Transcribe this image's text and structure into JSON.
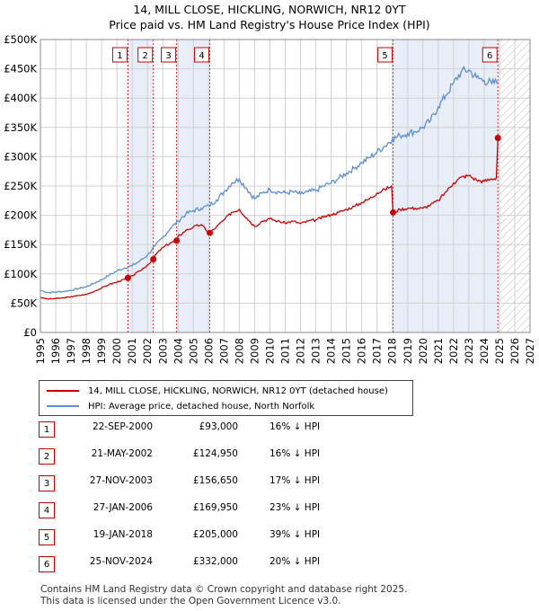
{
  "title_line1": "14, MILL CLOSE, HICKLING, NORWICH, NR12 0YT",
  "title_line2": "Price paid vs. HM Land Registry's House Price Index (HPI)",
  "legend": {
    "property_label": "14, MILL CLOSE, HICKLING, NORWICH, NR12 0YT (detached house)",
    "hpi_label": "HPI: Average price, detached house, North Norfolk"
  },
  "colors": {
    "property": "#cc0000",
    "hpi": "#5b8fd0",
    "shade": "#e8eef8",
    "grid": "#d0d0d0",
    "marker_border": "#cc0000",
    "vline": "#cc0000"
  },
  "transactions": [
    {
      "num": "1",
      "date": "22-SEP-2000",
      "price": "£93,000",
      "hpi": "16% ↓ HPI"
    },
    {
      "num": "2",
      "date": "21-MAY-2002",
      "price": "£124,950",
      "hpi": "16% ↓ HPI"
    },
    {
      "num": "3",
      "date": "27-NOV-2003",
      "price": "£156,650",
      "hpi": "17% ↓ HPI"
    },
    {
      "num": "4",
      "date": "27-JAN-2006",
      "price": "£169,950",
      "hpi": "23% ↓ HPI"
    },
    {
      "num": "5",
      "date": "19-JAN-2018",
      "price": "£205,000",
      "hpi": "39% ↓ HPI"
    },
    {
      "num": "6",
      "date": "25-NOV-2024",
      "price": "£332,000",
      "hpi": "20% ↓ HPI"
    }
  ],
  "footer_line1": "Contains HM Land Registry data © Crown copyright and database right 2025.",
  "footer_line2": "This data is licensed under the Open Government Licence v3.0.",
  "chart_data": {
    "type": "line",
    "title": "14, MILL CLOSE, HICKLING, NORWICH, NR12 0YT — Price paid vs. HM Land Registry's House Price Index (HPI)",
    "xlabel": "",
    "ylabel": "",
    "xlim": [
      1995,
      2027
    ],
    "ylim": [
      0,
      500000
    ],
    "x_ticks": [
      "1995",
      "1996",
      "1997",
      "1998",
      "1999",
      "2000",
      "2001",
      "2002",
      "2003",
      "2004",
      "2005",
      "2006",
      "2007",
      "2008",
      "2009",
      "2010",
      "2011",
      "2012",
      "2013",
      "2014",
      "2015",
      "2016",
      "2017",
      "2018",
      "2019",
      "2020",
      "2021",
      "2022",
      "2023",
      "2024",
      "2025",
      "2026",
      "2027"
    ],
    "y_ticks": [
      {
        "value": 0,
        "label": "£0"
      },
      {
        "value": 50000,
        "label": "£50K"
      },
      {
        "value": 100000,
        "label": "£100K"
      },
      {
        "value": 150000,
        "label": "£150K"
      },
      {
        "value": 200000,
        "label": "£200K"
      },
      {
        "value": 250000,
        "label": "£250K"
      },
      {
        "value": 300000,
        "label": "£300K"
      },
      {
        "value": 350000,
        "label": "£350K"
      },
      {
        "value": 400000,
        "label": "£400K"
      },
      {
        "value": 450000,
        "label": "£450K"
      },
      {
        "value": 500000,
        "label": "£500K"
      }
    ],
    "hatch_from": 2025,
    "shaded_spans": [
      [
        2000.72,
        2002.38
      ],
      [
        2003.9,
        2006.07
      ],
      [
        2018.05,
        2024.9
      ]
    ],
    "series": [
      {
        "name": "HPI: Average price, detached house, North Norfolk",
        "x": [
          1995.0,
          1995.5,
          1996.0,
          1996.5,
          1997.0,
          1997.5,
          1998.0,
          1998.5,
          1999.0,
          1999.5,
          2000.0,
          2000.5,
          2001.0,
          2001.5,
          2002.0,
          2002.5,
          2003.0,
          2003.5,
          2004.0,
          2004.5,
          2005.0,
          2005.5,
          2006.0,
          2006.5,
          2007.0,
          2007.5,
          2008.0,
          2008.5,
          2009.0,
          2009.5,
          2010.0,
          2010.5,
          2011.0,
          2011.5,
          2012.0,
          2012.5,
          2013.0,
          2013.5,
          2014.0,
          2014.5,
          2015.0,
          2015.5,
          2016.0,
          2016.5,
          2017.0,
          2017.5,
          2018.0,
          2018.5,
          2019.0,
          2019.5,
          2020.0,
          2020.5,
          2021.0,
          2021.5,
          2022.0,
          2022.5,
          2023.0,
          2023.5,
          2024.0,
          2024.5,
          2024.9
        ],
        "values": [
          72000,
          68000,
          69000,
          70000,
          72000,
          75000,
          78000,
          84000,
          90000,
          98000,
          105000,
          110000,
          114000,
          122000,
          132000,
          148000,
          162000,
          178000,
          190000,
          202000,
          208000,
          212000,
          216000,
          226000,
          240000,
          255000,
          262000,
          245000,
          228000,
          238000,
          244000,
          240000,
          238000,
          240000,
          236000,
          240000,
          242000,
          250000,
          255000,
          263000,
          272000,
          280000,
          290000,
          298000,
          308000,
          318000,
          330000,
          336000,
          340000,
          343000,
          350000,
          362000,
          385000,
          405000,
          425000,
          445000,
          448000,
          435000,
          430000,
          425000,
          428000
        ]
      },
      {
        "name": "14, MILL CLOSE, HICKLING, NORWICH, NR12 0YT (detached house)",
        "x": [
          1995.0,
          1995.5,
          1996.0,
          1996.5,
          1997.0,
          1997.5,
          1998.0,
          1998.5,
          1999.0,
          1999.5,
          2000.0,
          2000.5,
          2000.72,
          2001.0,
          2001.5,
          2002.0,
          2002.38,
          2002.5,
          2003.0,
          2003.5,
          2003.9,
          2004.0,
          2004.5,
          2005.0,
          2005.5,
          2006.0,
          2006.07,
          2006.5,
          2007.0,
          2007.5,
          2008.0,
          2008.5,
          2009.0,
          2009.5,
          2010.0,
          2010.5,
          2011.0,
          2011.5,
          2012.0,
          2012.5,
          2013.0,
          2013.5,
          2014.0,
          2014.5,
          2015.0,
          2015.5,
          2016.0,
          2016.5,
          2017.0,
          2017.5,
          2017.95,
          2018.05,
          2018.5,
          2019.0,
          2019.5,
          2020.0,
          2020.5,
          2021.0,
          2021.5,
          2022.0,
          2022.5,
          2023.0,
          2023.5,
          2024.0,
          2024.5,
          2024.8,
          2024.9
        ],
        "values": [
          60000,
          57000,
          58000,
          59000,
          61000,
          63000,
          65000,
          70000,
          76000,
          82000,
          86000,
          91000,
          93000,
          97000,
          105000,
          115000,
          124950,
          132000,
          145000,
          153000,
          156650,
          164000,
          174000,
          180000,
          184000,
          171000,
          169950,
          180000,
          192000,
          205000,
          210000,
          195000,
          181000,
          190000,
          194000,
          190000,
          187000,
          190000,
          186000,
          190000,
          192000,
          197000,
          201000,
          205000,
          210000,
          215000,
          222000,
          228000,
          238000,
          244000,
          250000,
          205000,
          210000,
          212000,
          212000,
          212000,
          218000,
          225000,
          240000,
          255000,
          265000,
          268000,
          260000,
          258000,
          262000,
          264000,
          332000
        ]
      }
    ],
    "sale_points": [
      {
        "label": "1",
        "x": 2000.72,
        "value": 93000
      },
      {
        "label": "2",
        "x": 2002.38,
        "value": 124950
      },
      {
        "label": "3",
        "x": 2003.9,
        "value": 156650
      },
      {
        "label": "4",
        "x": 2006.07,
        "value": 169950
      },
      {
        "label": "5",
        "x": 2018.05,
        "value": 205000
      },
      {
        "label": "6",
        "x": 2024.9,
        "value": 332000
      }
    ]
  }
}
